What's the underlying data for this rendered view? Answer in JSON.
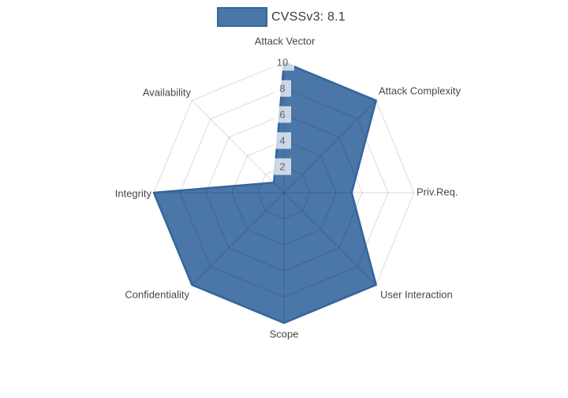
{
  "legend": {
    "label": "CVSSv3: 8.1"
  },
  "colors": {
    "trace_fill": "#31639c",
    "trace_fill_opacity": 0.88,
    "trace_line": "#34659b",
    "grid_line": "rgba(0,0,0,0.12)",
    "axis_label_text": "#474747",
    "tick_text": "#5f6368",
    "tick_bg": "rgba(255,255,255,0.72)",
    "legend_text": "#3b3b3b"
  },
  "chart_data": {
    "type": "radar",
    "title": "CVSSv3: 8.1",
    "categories": [
      "Attack Vector",
      "Attack Complexity",
      "Priv.Req.",
      "User Interaction",
      "Scope",
      "Confidentiality",
      "Integrity",
      "Availability"
    ],
    "series": [
      {
        "name": "CVSSv3: 8.1",
        "values": [
          10,
          10,
          5.2,
          10,
          10,
          10,
          10,
          1.1
        ]
      }
    ],
    "radial_ticks": [
      2,
      4,
      6,
      8,
      10
    ],
    "radial_range": [
      0,
      10
    ],
    "angular_start_deg": 90,
    "direction": "clockwise",
    "grid": true,
    "legend_position": "top-center"
  }
}
